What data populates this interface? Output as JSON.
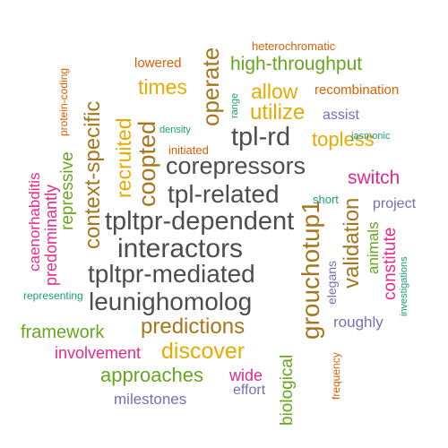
{
  "colors": {
    "dark": "#4d4d4d",
    "brown": "#a6761d",
    "gold": "#e6ab02",
    "green": "#66a61e",
    "pink": "#e7298a",
    "orange": "#d95f02",
    "purple": "#7570b3",
    "teal": "#1b9e77"
  },
  "words": [
    {
      "text": "heterochromatic",
      "color": "orange"
    },
    {
      "text": "lowered",
      "color": "orange"
    },
    {
      "text": "operate",
      "color": "brown"
    },
    {
      "text": "high-throughput",
      "color": "green"
    },
    {
      "text": "protein-coding",
      "color": "orange"
    },
    {
      "text": "times",
      "color": "gold"
    },
    {
      "text": "range",
      "color": "teal"
    },
    {
      "text": "allow",
      "color": "gold"
    },
    {
      "text": "recombination",
      "color": "orange"
    },
    {
      "text": "utilize",
      "color": "gold"
    },
    {
      "text": "assist",
      "color": "purple"
    },
    {
      "text": "context-specific",
      "color": "brown"
    },
    {
      "text": "recruited",
      "color": "gold"
    },
    {
      "text": "coopted",
      "color": "brown"
    },
    {
      "text": "density",
      "color": "teal"
    },
    {
      "text": "tpl-rd",
      "color": "dark"
    },
    {
      "text": "topless",
      "color": "gold"
    },
    {
      "text": "jasmonic",
      "color": "teal"
    },
    {
      "text": "initiated",
      "color": "orange"
    },
    {
      "text": "caenorhabditis",
      "color": "pink"
    },
    {
      "text": "predominantly",
      "color": "pink"
    },
    {
      "text": "repressive",
      "color": "green"
    },
    {
      "text": "corepressors",
      "color": "dark"
    },
    {
      "text": "switch",
      "color": "pink"
    },
    {
      "text": "tpl-related",
      "color": "dark"
    },
    {
      "text": "short",
      "color": "teal"
    },
    {
      "text": "project",
      "color": "purple"
    },
    {
      "text": "tpltpr-dependent",
      "color": "dark"
    },
    {
      "text": "validation",
      "color": "brown"
    },
    {
      "text": "animals",
      "color": "green"
    },
    {
      "text": "constitute",
      "color": "pink"
    },
    {
      "text": "interactors",
      "color": "dark"
    },
    {
      "text": "grouchotup1",
      "color": "brown"
    },
    {
      "text": "tpltpr-mediated",
      "color": "dark"
    },
    {
      "text": "elegans",
      "color": "purple"
    },
    {
      "text": "investigations",
      "color": "teal"
    },
    {
      "text": "representing",
      "color": "teal"
    },
    {
      "text": "leunighomolog",
      "color": "dark"
    },
    {
      "text": "predictions",
      "color": "brown"
    },
    {
      "text": "roughly",
      "color": "purple"
    },
    {
      "text": "framework",
      "color": "green"
    },
    {
      "text": "biological",
      "color": "green"
    },
    {
      "text": "involvement",
      "color": "pink"
    },
    {
      "text": "discover",
      "color": "gold"
    },
    {
      "text": "frequency",
      "color": "orange"
    },
    {
      "text": "approaches",
      "color": "green"
    },
    {
      "text": "wide",
      "color": "pink"
    },
    {
      "text": "effort",
      "color": "purple"
    },
    {
      "text": "milestones",
      "color": "purple"
    }
  ]
}
